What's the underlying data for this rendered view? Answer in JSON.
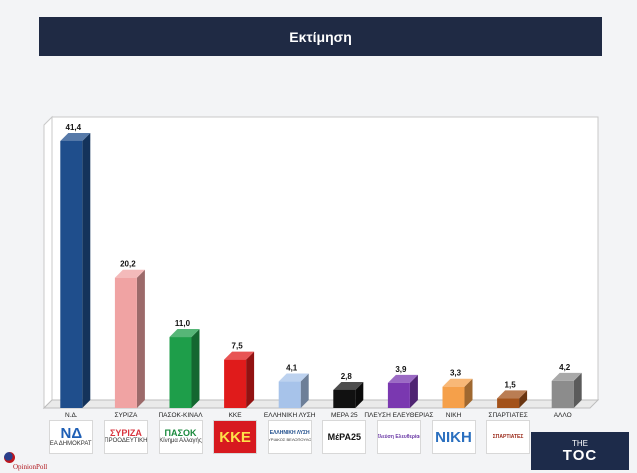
{
  "header": {
    "title": "Εκτίμηση"
  },
  "chart_data": {
    "type": "bar",
    "title": "Εκτίμηση",
    "categories": [
      "Ν.Δ.",
      "ΣΥΡΙΖΑ",
      "ΠΑΣΟΚ-ΚΙΝΑΛ",
      "ΚΚΕ",
      "ΕΛΛΗΝΙΚΗ ΛΥΣΗ",
      "ΜΕΡΑ 25",
      "ΠΛΕΥΣΗ ΕΛΕΥΘΕΡΙΑΣ",
      "ΝΙΚΗ",
      "ΣΠΑΡΤΙΑΤΕΣ",
      "ΑΛΛΟ"
    ],
    "values": [
      41.4,
      20.2,
      11.0,
      7.5,
      4.1,
      2.8,
      3.9,
      3.3,
      1.5,
      4.2
    ],
    "value_labels": [
      "41,4",
      "20,2",
      "11,0",
      "7,5",
      "4,1",
      "2,8",
      "3,9",
      "3,3",
      "1,5",
      "4,2"
    ],
    "colors": [
      "#1f4e8c",
      "#f0a3a3",
      "#1e9e4a",
      "#e01b1b",
      "#a7c3ea",
      "#111111",
      "#7a38b0",
      "#f5a04a",
      "#a3521a",
      "#8c8c8c"
    ],
    "ylim": [
      0,
      45
    ],
    "grid": false,
    "legend": "none"
  },
  "logos": [
    {
      "main": "ΝΔ",
      "sub": "ΝΕΑ ΔΗΜΟΚΡΑΤΙΑ",
      "color": "#1f5fb5",
      "bg": "#ffffff"
    },
    {
      "main": "ΣΥΡΙΖΑ",
      "sub": "ΠΡΟΟΔΕΥΤΙΚΗ",
      "color": "#d9353f",
      "bg": "#ffffff"
    },
    {
      "main": "ΠΑΣΟΚ",
      "sub": "Κίνημα Αλλαγής",
      "color": "#1a8a3d",
      "bg": "#ffffff"
    },
    {
      "main": "ΚΚΕ",
      "sub": "",
      "color": "#ffe14a",
      "bg": "#d7191f"
    },
    {
      "main": "ΕΛΛΗΝΙΚΗ ΛΥΣΗ",
      "sub": "ΚΥΡΙΑΚΟΣ ΒΕΛΟΠΟΥΛΟΣ",
      "color": "#1a4a8a",
      "bg": "#ffffff"
    },
    {
      "main": "ΜέΡΑ25",
      "sub": "",
      "color": "#111111",
      "bg": "#ffffff"
    },
    {
      "main": "Πλεύση Ελευθερίας",
      "sub": "",
      "color": "#6b3aa6",
      "bg": "#ffffff"
    },
    {
      "main": "ΝΙΚΗ",
      "sub": "",
      "color": "#2a6fbf",
      "bg": "#ffffff"
    },
    {
      "main": "ΣΠΑΡΤΙΑΤΕΣ",
      "sub": "",
      "color": "#9a2a1a",
      "bg": "#ffffff"
    }
  ],
  "branding": {
    "opinion": "OpinionPoll",
    "toc_the": "THE",
    "toc_name": "TOC"
  }
}
